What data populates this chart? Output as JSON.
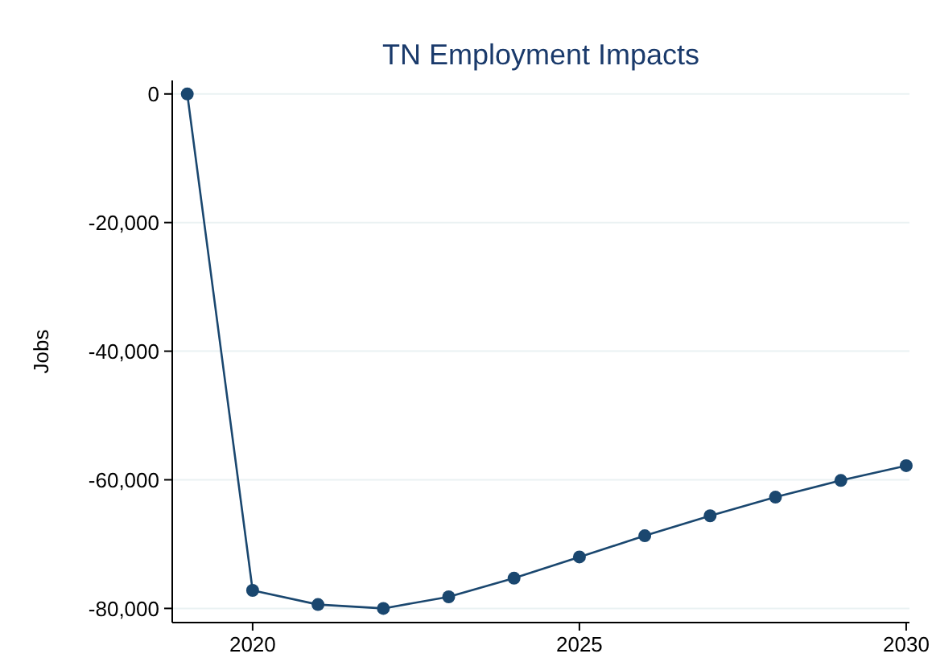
{
  "chart_data": {
    "type": "line",
    "title": "TN Employment Impacts",
    "ylabel": "Jobs",
    "x": [
      2019,
      2020,
      2021,
      2022,
      2023,
      2024,
      2025,
      2026,
      2027,
      2028,
      2029,
      2030
    ],
    "series": [
      {
        "color": "#1a476f",
        "values": [
          0,
          -77200,
          -79400,
          -80000,
          -78200,
          -75300,
          -72000,
          -68700,
          -65600,
          -62700,
          -60100,
          -57800
        ]
      }
    ],
    "xlim": [
      2018.77,
      2030.05
    ],
    "xticks": [
      2020,
      2025,
      2030
    ],
    "ylim": [
      -82200,
      2100
    ],
    "yticks": [
      {
        "value": 0,
        "label": "0"
      },
      {
        "value": -20000,
        "label": "-20,000"
      },
      {
        "value": -40000,
        "label": "-40,000"
      },
      {
        "value": -60000,
        "label": "-60,000"
      },
      {
        "value": -80000,
        "label": "-80,000"
      }
    ],
    "grid": "y",
    "marker": "circle",
    "line_style": "solid"
  }
}
